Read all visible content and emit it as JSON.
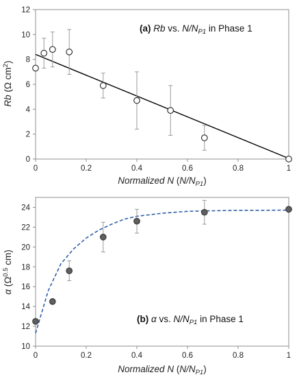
{
  "chart_data": [
    {
      "type": "scatter",
      "panel": "(a)",
      "annotation": {
        "prefix": "(a) ",
        "var": "Rb",
        "mid": " vs. ",
        "n": "N/N",
        "sub": "P1",
        "suffix": " in Phase 1"
      },
      "xlabel": {
        "main": "Normalized ",
        "var": "N",
        "open": " (",
        "n": "N/N",
        "sub": "P1",
        "close": ")"
      },
      "ylabel": {
        "var": "Rb",
        "unit_open": " (Ω cm",
        "sup": "2",
        "unit_close": ")"
      },
      "xlim": [
        0,
        1
      ],
      "ylim": [
        0,
        12
      ],
      "xticks": [
        0,
        0.2,
        0.4,
        0.6,
        0.8,
        1
      ],
      "xtick_labels": [
        "0",
        "0.2",
        "0.4",
        "0.6",
        "0.8",
        "1"
      ],
      "yticks": [
        0,
        2,
        4,
        6,
        8,
        10,
        12
      ],
      "ytick_labels": [
        "0",
        "2",
        "4",
        "6",
        "8",
        "10",
        "12"
      ],
      "marker": "open-circle",
      "points": [
        {
          "x": 0.0,
          "y": 7.3
        },
        {
          "x": 0.033,
          "y": 8.5,
          "err": 1.2
        },
        {
          "x": 0.067,
          "y": 8.8,
          "err": 1.4
        },
        {
          "x": 0.133,
          "y": 8.6,
          "err": 1.8
        },
        {
          "x": 0.267,
          "y": 5.9,
          "err": 1.0
        },
        {
          "x": 0.4,
          "y": 4.7,
          "err": 2.3
        },
        {
          "x": 0.533,
          "y": 3.9,
          "err": 2.0
        },
        {
          "x": 0.667,
          "y": 1.7,
          "err": 1.0
        },
        {
          "x": 1.0,
          "y": 0.0
        }
      ],
      "fit": {
        "style": "solid-line",
        "color": "#000000",
        "x": [
          0,
          1
        ],
        "y": [
          8.4,
          0.05
        ]
      }
    },
    {
      "type": "scatter",
      "panel": "(b)",
      "annotation": {
        "prefix": "(b) ",
        "var": "α",
        "mid": " vs. ",
        "n": "N/N",
        "sub": "P1",
        "suffix": " in Phase 1"
      },
      "xlabel": {
        "main": "Normalized ",
        "var": "N",
        "open": " (",
        "n": "N/N",
        "sub": "P1",
        "close": ")"
      },
      "ylabel": {
        "var": "α",
        "unit_open": " (Ω",
        "sup": "0.5",
        "unit_close": " cm)"
      },
      "xlim": [
        0,
        1
      ],
      "ylim": [
        10,
        25
      ],
      "xticks": [
        0,
        0.2,
        0.4,
        0.6,
        0.8,
        1
      ],
      "xtick_labels": [
        "0",
        "0.2",
        "0.4",
        "0.6",
        "0.8",
        "1"
      ],
      "yticks": [
        10,
        12,
        14,
        16,
        18,
        20,
        22,
        24
      ],
      "ytick_labels": [
        "10",
        "12",
        "14",
        "16",
        "18",
        "20",
        "22",
        "24"
      ],
      "marker": "filled-circle",
      "marker_color": "#5f5f5f",
      "points": [
        {
          "x": 0.0,
          "y": 12.5
        },
        {
          "x": 0.067,
          "y": 14.5
        },
        {
          "x": 0.133,
          "y": 17.6,
          "err": 1.0
        },
        {
          "x": 0.267,
          "y": 21.0,
          "err": 1.5
        },
        {
          "x": 0.4,
          "y": 22.6,
          "err": 1.2
        },
        {
          "x": 0.667,
          "y": 23.5,
          "err": 1.2
        },
        {
          "x": 1.0,
          "y": 23.8
        }
      ],
      "fit": {
        "style": "dashed-curve",
        "color": "#2e5fa8",
        "x": [
          0,
          0.05,
          0.1,
          0.15,
          0.2,
          0.25,
          0.3,
          0.35,
          0.4,
          0.5,
          0.6,
          0.7,
          0.8,
          0.9,
          1.0
        ],
        "y": [
          11.3,
          15.6,
          18.3,
          19.8,
          20.9,
          21.7,
          22.3,
          22.8,
          23.1,
          23.4,
          23.6,
          23.65,
          23.7,
          23.7,
          23.72
        ]
      }
    }
  ]
}
